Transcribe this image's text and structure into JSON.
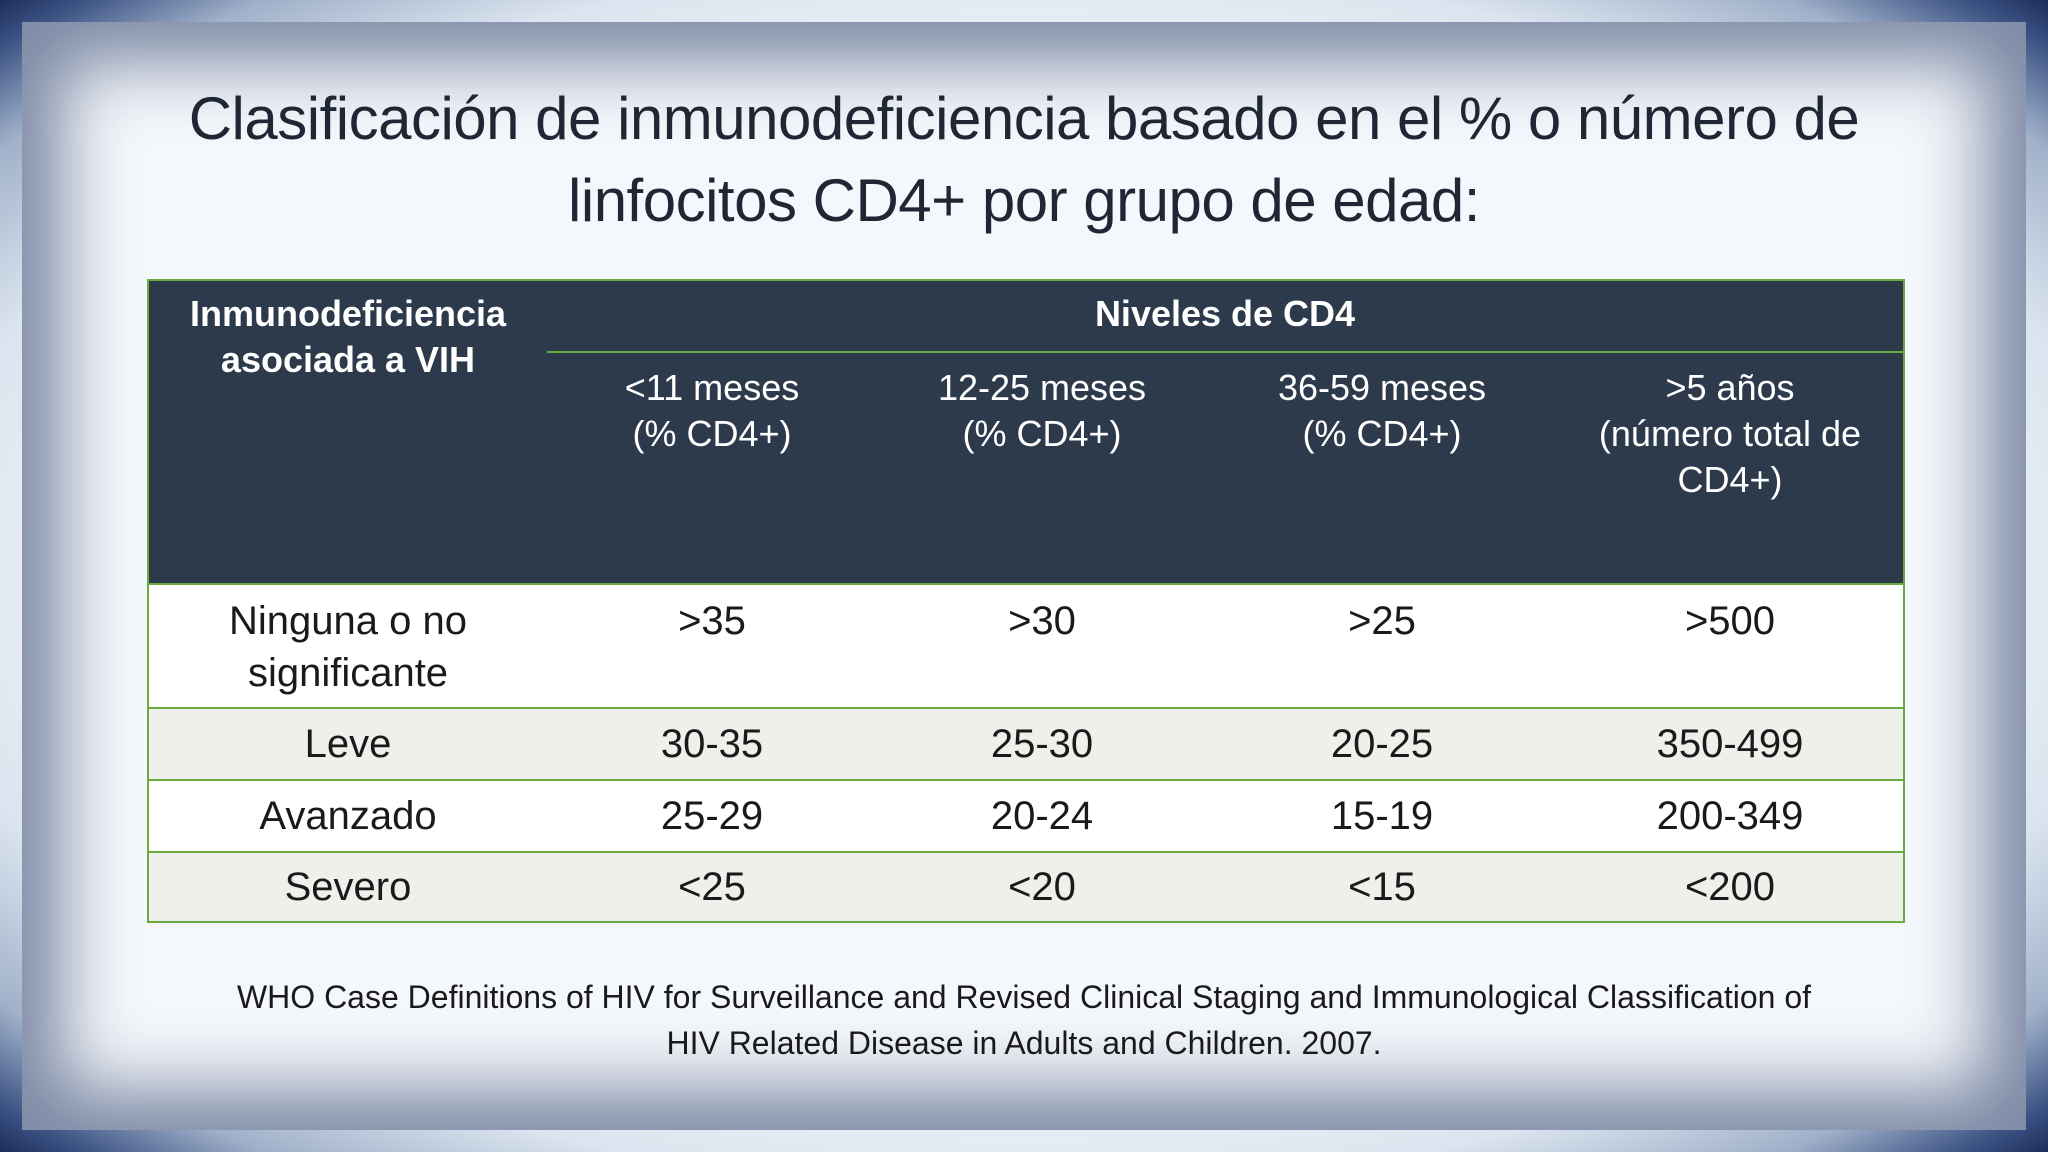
{
  "slide": {
    "title_line1": "Clasificación de inmunodeficiencia basado en el % o número de",
    "title_line2": "linfocitos CD4+ por grupo de edad:",
    "footnote_line1": "WHO Case Definitions of HIV for Surveillance and Revised Clinical Staging and Immunological Classification of",
    "footnote_line2": "HIV Related Disease in Adults and Children. 2007."
  },
  "table": {
    "row_header_line1": "Inmunodeficiencia",
    "row_header_line2": "asociada a VIH",
    "group_header": "Niveles de CD4",
    "columns": [
      {
        "line1": "<11 meses",
        "line2": "(% CD4+)",
        "line3": ""
      },
      {
        "line1": "12-25 meses",
        "line2": "(% CD4+)",
        "line3": ""
      },
      {
        "line1": "36-59 meses",
        "line2": "(% CD4+)",
        "line3": ""
      },
      {
        "line1": ">5 años",
        "line2": "(número total de",
        "line3": "CD4+)"
      }
    ],
    "rows": [
      {
        "label_line1": "Ninguna o no",
        "label_line2": "significante",
        "values": [
          ">35",
          ">30",
          ">25",
          ">500"
        ]
      },
      {
        "label_line1": "Leve",
        "label_line2": "",
        "values": [
          "30-35",
          "25-30",
          "20-25",
          "350-499"
        ]
      },
      {
        "label_line1": "Avanzado",
        "label_line2": "",
        "values": [
          "25-29",
          "20-24",
          "15-19",
          "200-349"
        ]
      },
      {
        "label_line1": "Severo",
        "label_line2": "",
        "values": [
          "<25",
          "<20",
          "<15",
          "<200"
        ]
      }
    ]
  },
  "colors": {
    "header_bg": "#2d3a4b",
    "border_green": "#6aaa3f",
    "alt_row_bg": "#eef0eb",
    "frame_blue": "#1f3565"
  }
}
